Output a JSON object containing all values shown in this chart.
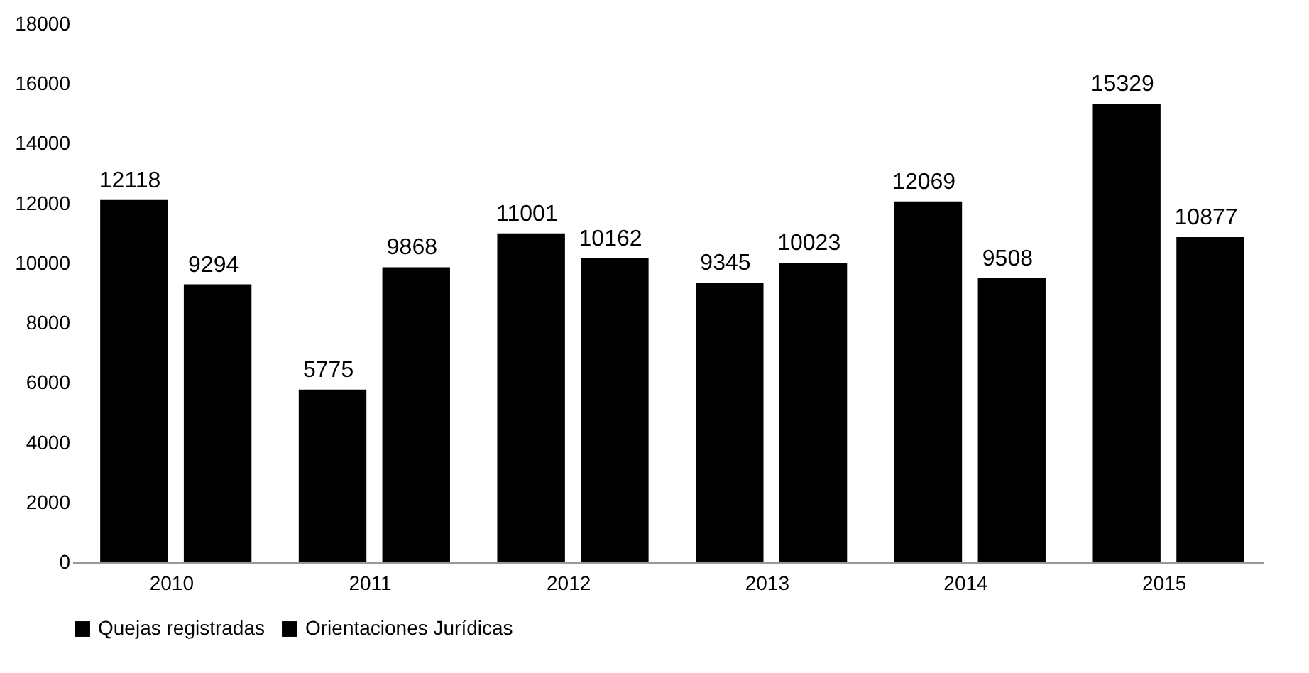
{
  "chart_data": {
    "type": "bar",
    "categories": [
      "2010",
      "2011",
      "2012",
      "2013",
      "2014",
      "2015"
    ],
    "series": [
      {
        "name": "Quejas registradas",
        "color": "#000000",
        "values": [
          12118,
          5775,
          11001,
          9345,
          12069,
          15329
        ]
      },
      {
        "name": "Orientaciones Jurídicas",
        "color": "#000000",
        "values": [
          9294,
          9868,
          10162,
          10023,
          9508,
          10877
        ]
      }
    ],
    "ylim": [
      0,
      18000
    ],
    "yticks": [
      0,
      2000,
      4000,
      6000,
      8000,
      10000,
      12000,
      14000,
      16000,
      18000
    ],
    "grid": false,
    "legend": "bottom",
    "data_labels": true
  }
}
